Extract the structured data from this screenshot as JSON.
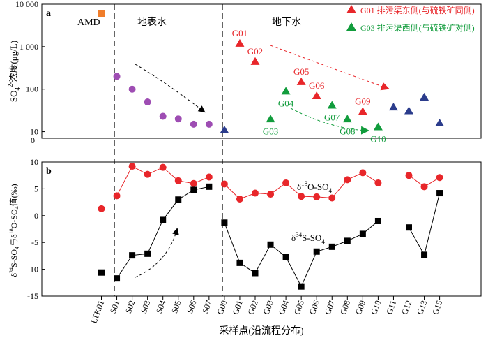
{
  "colors": {
    "axis": "#000000",
    "red": "#e8262a",
    "green": "#119c3c",
    "purple": "#9e4db3",
    "blue": "#2b3c8c",
    "orange": "#f07d2b",
    "black": "#000000",
    "o_line": "#e8262a",
    "s_line": "#000000"
  },
  "chart_data": [
    {
      "panel": "a",
      "type": "scatter",
      "ylabel": "SO4²⁻浓度(μg/L)",
      "y_scale": "log",
      "ylim": [
        7,
        10000
      ],
      "yticks": [
        {
          "v": 10,
          "label": "10"
        },
        {
          "v": 100,
          "label": "100"
        },
        {
          "v": 1000,
          "label": "1 000"
        },
        {
          "v": 10000,
          "label": "10 000"
        }
      ],
      "region_labels": {
        "amd": "AMD",
        "surface": "地表水",
        "ground": "地下水"
      },
      "legend": [
        {
          "label": "G01  排污渠东侧(与硫铁矿同侧)",
          "color_key": "red"
        },
        {
          "label": "G03  排污渠西侧(与硫铁矿对侧)",
          "color_key": "green"
        }
      ],
      "series": [
        {
          "marker": "square",
          "color_key": "orange",
          "points": [
            {
              "x": "LTK01",
              "y": 6000
            }
          ]
        },
        {
          "marker": "circle",
          "color_key": "purple",
          "points": [
            {
              "x": "S01",
              "y": 200
            },
            {
              "x": "S02",
              "y": 100
            },
            {
              "x": "S03",
              "y": 50
            },
            {
              "x": "S04",
              "y": 23
            },
            {
              "x": "S05",
              "y": 20
            },
            {
              "x": "S06",
              "y": 15
            },
            {
              "x": "S07",
              "y": 15
            }
          ]
        },
        {
          "marker": "triangle",
          "color_key": "red",
          "points": [
            {
              "x": "G01",
              "y": 1200,
              "label": "G01"
            },
            {
              "x": "G02",
              "y": 450,
              "label": "G02"
            },
            {
              "x": "G05",
              "y": 150,
              "label": "G05"
            },
            {
              "x": "G06",
              "y": 70,
              "label": "G06"
            },
            {
              "x": "G09",
              "y": 30,
              "label": "G09"
            }
          ]
        },
        {
          "marker": "triangle",
          "color_key": "green",
          "points": [
            {
              "x": "G03",
              "y": 20,
              "label": "G03"
            },
            {
              "x": "G04",
              "y": 90,
              "label": "G04"
            },
            {
              "x": "G07",
              "y": 42,
              "label": "G07"
            },
            {
              "x": "G08",
              "y": 20,
              "label": "G08"
            },
            {
              "x": "G10",
              "y": 13,
              "label": "G10"
            }
          ]
        },
        {
          "marker": "triangle",
          "color_key": "blue",
          "points": [
            {
              "x": "G00",
              "y": 11
            },
            {
              "x": "G11",
              "y": 38
            },
            {
              "x": "G12",
              "y": 31
            },
            {
              "x": "G13",
              "y": 65
            },
            {
              "x": "G15",
              "y": 16
            }
          ]
        }
      ]
    },
    {
      "panel": "b",
      "type": "line",
      "ylabel": "δ34S-SO4与δ18O-SO4值(‰)",
      "ylim": [
        -15,
        10
      ],
      "yticks": [
        {
          "v": 10,
          "label": "10"
        },
        {
          "v": 5,
          "label": "5"
        },
        {
          "v": 0,
          "label": "0"
        },
        {
          "v": -5,
          "label": "-5"
        },
        {
          "v": -10,
          "label": "-10"
        },
        {
          "v": -15,
          "label": "-15"
        }
      ],
      "xlabel": "采样点(沿流程分布)",
      "categories": [
        "LTK01",
        "S01",
        "S02",
        "S03",
        "S04",
        "S05",
        "S06",
        "S07",
        "G00",
        "G01",
        "G02",
        "G03",
        "G04",
        "G05",
        "G06",
        "G07",
        "G08",
        "G09",
        "G10",
        "G11",
        "G12",
        "G13",
        "G15"
      ],
      "series": [
        {
          "name": "δ18O-SO4",
          "marker": "circle",
          "color_key": "red",
          "segments": [
            [
              {
                "x": "LTK01",
                "y": 1.3
              }
            ],
            [
              {
                "x": "S01",
                "y": 3.7
              },
              {
                "x": "S02",
                "y": 9.2
              },
              {
                "x": "S03",
                "y": 7.7
              },
              {
                "x": "S04",
                "y": 9
              },
              {
                "x": "S05",
                "y": 6.5
              },
              {
                "x": "S06",
                "y": 6
              },
              {
                "x": "S07",
                "y": 7.2
              }
            ],
            [
              {
                "x": "G00",
                "y": 5.9
              },
              {
                "x": "G01",
                "y": 3.1
              },
              {
                "x": "G02",
                "y": 4.2
              },
              {
                "x": "G03",
                "y": 4
              },
              {
                "x": "G04",
                "y": 6.1
              },
              {
                "x": "G05",
                "y": 3.6
              },
              {
                "x": "G06",
                "y": 3.5
              },
              {
                "x": "G07",
                "y": 3.3
              },
              {
                "x": "G08",
                "y": 6.7
              },
              {
                "x": "G09",
                "y": 8
              },
              {
                "x": "G10",
                "y": 6.1
              }
            ],
            [
              {
                "x": "G12",
                "y": 7.5
              },
              {
                "x": "G13",
                "y": 5.4
              },
              {
                "x": "G15",
                "y": 7.1
              }
            ]
          ]
        },
        {
          "name": "δ34S-SO4",
          "marker": "square",
          "color_key": "black",
          "segments": [
            [
              {
                "x": "LTK01",
                "y": -10.6
              }
            ],
            [
              {
                "x": "S01",
                "y": -11.7
              },
              {
                "x": "S02",
                "y": -7.4
              },
              {
                "x": "S03",
                "y": -7.1
              },
              {
                "x": "S04",
                "y": -0.8
              },
              {
                "x": "S05",
                "y": 3
              },
              {
                "x": "S06",
                "y": 4.8
              },
              {
                "x": "S07",
                "y": 5.4
              }
            ],
            [
              {
                "x": "G00",
                "y": -1.3
              },
              {
                "x": "G01",
                "y": -8.8
              },
              {
                "x": "G02",
                "y": -10.7
              },
              {
                "x": "G03",
                "y": -5.4
              },
              {
                "x": "G04",
                "y": -7.7
              },
              {
                "x": "G05",
                "y": -13.2
              },
              {
                "x": "G06",
                "y": -6.7
              },
              {
                "x": "G07",
                "y": -5.8
              },
              {
                "x": "G08",
                "y": -4.7
              },
              {
                "x": "G09",
                "y": -3.4
              },
              {
                "x": "G10",
                "y": -1
              }
            ],
            [
              {
                "x": "G12",
                "y": -2.2
              },
              {
                "x": "G13",
                "y": -7.3
              },
              {
                "x": "G15",
                "y": 4.2
              }
            ]
          ]
        }
      ]
    }
  ],
  "panel_a": {
    "letter": "a",
    "amd": "AMD",
    "surface": "地表水",
    "ground": "地下水",
    "ylabel_main": "SO",
    "ylabel_sub": "4",
    "ylabel_sup": "2-",
    "ylabel_rest": "浓度(μg/L)",
    "axis_zero": "0",
    "legend": [
      {
        "label": "G01  排污渠东侧(与硫铁矿同侧)"
      },
      {
        "label": "G03  排污渠西侧(与硫铁矿对侧)"
      }
    ]
  },
  "panel_b": {
    "letter": "b",
    "o_label": {
      "pre": "δ",
      "sup": "18",
      "mid": "O-SO",
      "sub": "4"
    },
    "s_label": {
      "pre": "δ",
      "sup": "34",
      "mid": "S-SO",
      "sub": "4"
    },
    "ylabel": {
      "p1": "δ",
      "s1": "34",
      "p2": "S-SO",
      "b1": "4",
      "p3": "与δ",
      "s2": "18",
      "p4": "O-SO",
      "b2": "4",
      "p5": "值(‰)"
    },
    "xlabel": "采样点(沿流程分布)"
  }
}
